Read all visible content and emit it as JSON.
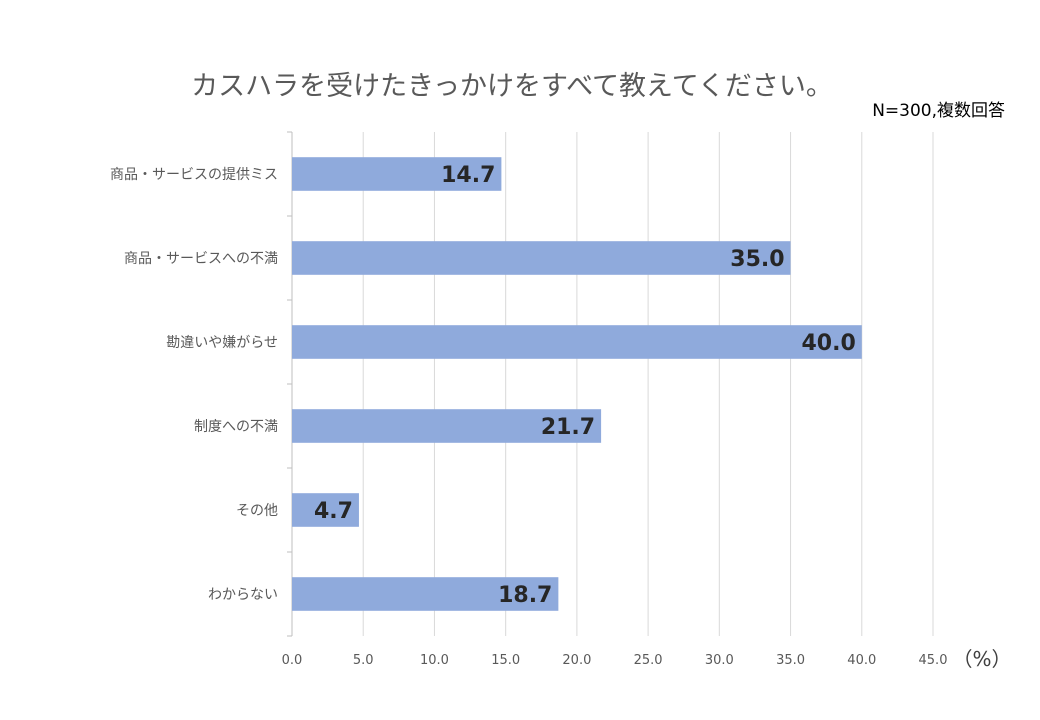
{
  "chart_data": {
    "type": "bar",
    "orientation": "horizontal",
    "title": "カスハラを受けたきっかけをすべて教えてください。",
    "note": "N=300,複数回答",
    "unit_label": "（%）",
    "categories": [
      "商品・サービスの提供ミス",
      "商品・サービスへの不満",
      "勘違いや嫌がらせ",
      "制度への不満",
      "その他",
      "わからない"
    ],
    "values": [
      14.7,
      35.0,
      40.0,
      21.7,
      4.7,
      18.7
    ],
    "data_labels": [
      "14.7",
      "35.0",
      "40.0",
      "21.7",
      "4.7",
      "18.7"
    ],
    "x_ticks": [
      "0.0",
      "5.0",
      "10.0",
      "15.0",
      "20.0",
      "25.0",
      "30.0",
      "35.0",
      "40.0",
      "45.0"
    ],
    "xlim": [
      0,
      45
    ],
    "grid": true,
    "bar_color": "#8faadc"
  }
}
